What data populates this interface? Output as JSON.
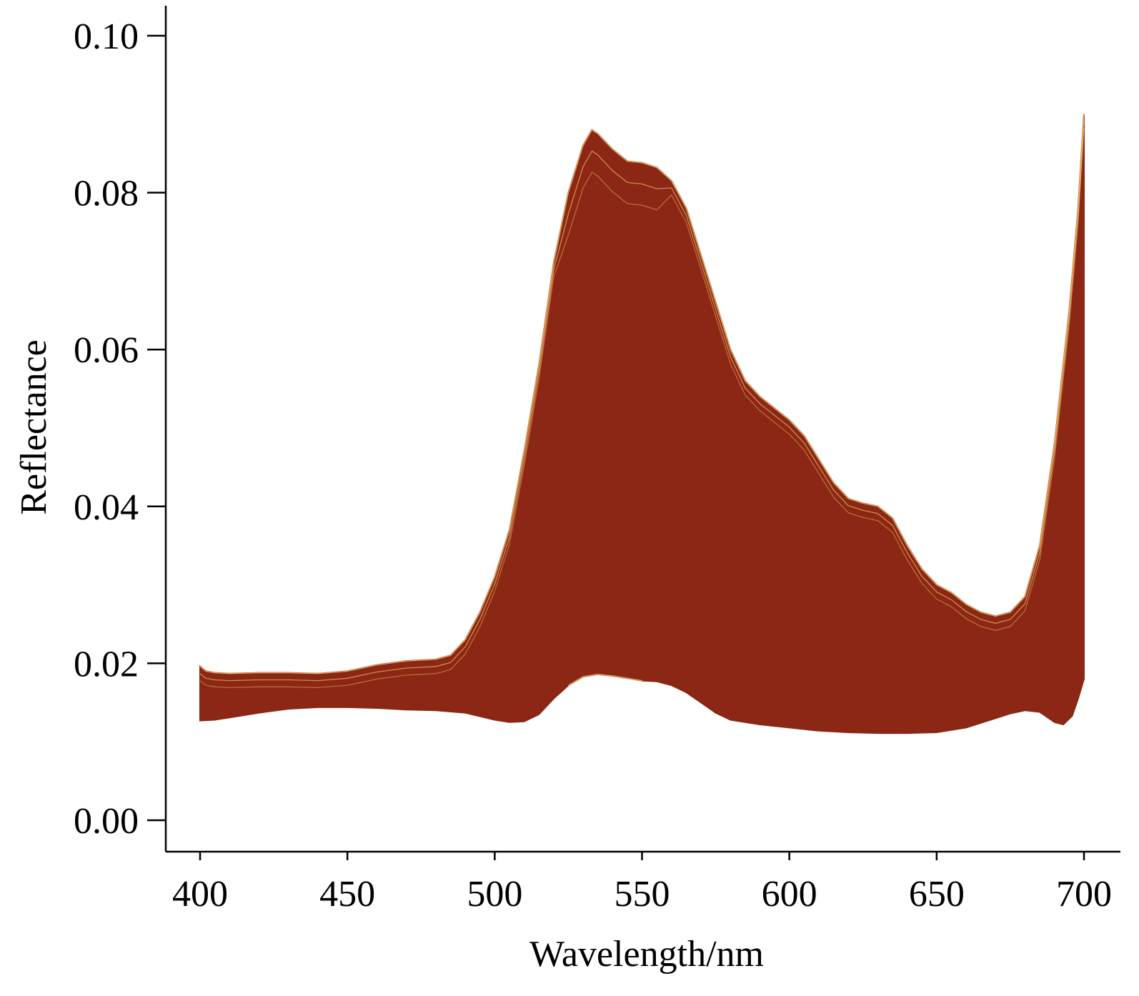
{
  "chart_data": {
    "type": "area",
    "title": "",
    "xlabel": "Wavelength/nm",
    "ylabel": "Reflectance",
    "xlim": [
      400,
      700
    ],
    "ylim": [
      0.0,
      0.1
    ],
    "xticks": [
      400,
      450,
      500,
      550,
      600,
      650,
      700
    ],
    "xtick_labels": [
      "400",
      "450",
      "500",
      "550",
      "600",
      "650",
      "700"
    ],
    "yticks": [
      0.0,
      0.02,
      0.04,
      0.06,
      0.08,
      0.1
    ],
    "ytick_labels": [
      "0.00",
      "0.02",
      "0.04",
      "0.06",
      "0.08",
      "0.10"
    ],
    "grid": false,
    "fill_color": "#8B2714",
    "highlight_color": "#F2C46A",
    "series": [
      {
        "role": "upper-envelope",
        "x": [
          400,
          402,
          405,
          410,
          420,
          430,
          440,
          450,
          460,
          470,
          480,
          485,
          490,
          495,
          500,
          505,
          510,
          515,
          520,
          525,
          530,
          533,
          535,
          540,
          545,
          550,
          555,
          560,
          565,
          570,
          575,
          580,
          585,
          590,
          595,
          600,
          605,
          610,
          615,
          620,
          625,
          630,
          635,
          640,
          645,
          650,
          655,
          660,
          665,
          670,
          675,
          680,
          685,
          690,
          695,
          698,
          700
        ],
        "y": [
          0.0196,
          0.019,
          0.0188,
          0.0187,
          0.0188,
          0.0188,
          0.0187,
          0.019,
          0.0198,
          0.0203,
          0.0205,
          0.021,
          0.023,
          0.0265,
          0.031,
          0.037,
          0.047,
          0.058,
          0.071,
          0.08,
          0.086,
          0.088,
          0.0875,
          0.0855,
          0.084,
          0.0838,
          0.0832,
          0.0815,
          0.078,
          0.072,
          0.066,
          0.06,
          0.056,
          0.054,
          0.0525,
          0.051,
          0.049,
          0.046,
          0.043,
          0.041,
          0.0404,
          0.04,
          0.0385,
          0.035,
          0.032,
          0.03,
          0.029,
          0.0275,
          0.0265,
          0.026,
          0.0265,
          0.0285,
          0.035,
          0.048,
          0.065,
          0.078,
          0.09
        ]
      },
      {
        "role": "lower-envelope",
        "x": [
          400,
          405,
          410,
          420,
          430,
          440,
          450,
          460,
          470,
          480,
          490,
          500,
          505,
          510,
          515,
          520,
          525,
          530,
          535,
          540,
          545,
          550,
          555,
          560,
          565,
          570,
          575,
          580,
          590,
          600,
          610,
          620,
          630,
          640,
          650,
          660,
          665,
          670,
          675,
          680,
          685,
          690,
          693,
          696,
          698,
          700
        ],
        "y": [
          0.0127,
          0.0128,
          0.0131,
          0.0137,
          0.0142,
          0.0144,
          0.0144,
          0.0143,
          0.0141,
          0.014,
          0.0137,
          0.0128,
          0.0125,
          0.0126,
          0.0135,
          0.0155,
          0.0172,
          0.0183,
          0.0186,
          0.0184,
          0.0181,
          0.0178,
          0.0177,
          0.0172,
          0.0163,
          0.015,
          0.0137,
          0.0128,
          0.0122,
          0.0118,
          0.0114,
          0.0112,
          0.0111,
          0.0111,
          0.0112,
          0.0118,
          0.0124,
          0.013,
          0.0136,
          0.014,
          0.0138,
          0.0125,
          0.0122,
          0.0133,
          0.0155,
          0.018
        ]
      }
    ]
  }
}
